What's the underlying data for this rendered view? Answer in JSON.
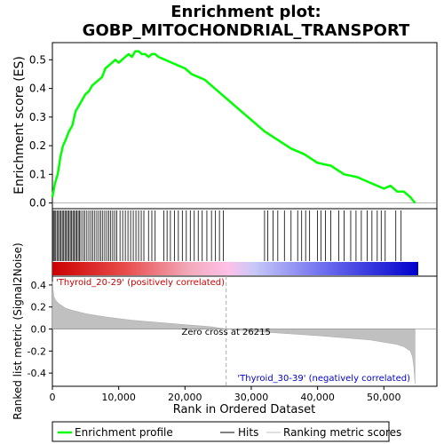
{
  "chart_data": {
    "type": "line",
    "title_line1": "Enrichment plot:",
    "title_line2": "GOBP_MITOCHONDRIAL_TRANSPORT",
    "ylabel_es": "Enrichment score (ES)",
    "ylabel_metric": "Ranked list metric (Signal2Noise)",
    "xlabel": "Rank in Ordered Dataset",
    "xlim": [
      0,
      58000
    ],
    "es_ylim": [
      -0.02,
      0.56
    ],
    "metric_ylim": [
      -0.52,
      0.48
    ],
    "x_ticks": [
      0,
      10000,
      20000,
      30000,
      40000,
      50000
    ],
    "x_tick_labels": [
      "0",
      "10,000",
      "20,000",
      "30,000",
      "40,000",
      "50,000"
    ],
    "es_ticks": [
      0.0,
      0.1,
      0.2,
      0.3,
      0.4,
      0.5
    ],
    "es_tick_labels": [
      "0.0",
      "0.1",
      "0.2",
      "0.3",
      "0.4",
      "0.5"
    ],
    "metric_ticks": [
      -0.4,
      -0.2,
      0.0,
      0.2,
      0.4
    ],
    "metric_tick_labels": [
      "-0.4",
      "-0.2",
      "0.0",
      "0.2",
      "0.4"
    ],
    "enrichment_profile": {
      "name": "Enrichment profile",
      "color": "#00ff00",
      "x": [
        0,
        400,
        800,
        1200,
        1600,
        2000,
        2500,
        3000,
        3500,
        4000,
        4500,
        5000,
        5500,
        6000,
        6500,
        7000,
        7500,
        8000,
        8500,
        9000,
        9500,
        10000,
        10500,
        11000,
        11500,
        12000,
        12500,
        13000,
        13500,
        14000,
        14500,
        15000,
        15500,
        16000,
        17000,
        18000,
        19000,
        20000,
        21000,
        22000,
        23000,
        24000,
        25000,
        26000,
        28000,
        30000,
        32000,
        34000,
        36000,
        38000,
        40000,
        42000,
        44000,
        46000,
        48000,
        50000,
        51000,
        52000,
        53000,
        54000,
        54700
      ],
      "y": [
        0.02,
        0.07,
        0.1,
        0.16,
        0.2,
        0.22,
        0.25,
        0.27,
        0.32,
        0.34,
        0.36,
        0.38,
        0.39,
        0.41,
        0.42,
        0.43,
        0.44,
        0.47,
        0.48,
        0.49,
        0.5,
        0.49,
        0.5,
        0.51,
        0.52,
        0.51,
        0.53,
        0.53,
        0.52,
        0.52,
        0.51,
        0.52,
        0.52,
        0.51,
        0.5,
        0.49,
        0.48,
        0.47,
        0.45,
        0.44,
        0.43,
        0.41,
        0.39,
        0.37,
        0.33,
        0.29,
        0.25,
        0.22,
        0.19,
        0.17,
        0.14,
        0.13,
        0.1,
        0.09,
        0.07,
        0.05,
        0.06,
        0.04,
        0.04,
        0.02,
        0.0
      ]
    },
    "hits_label": "Hits",
    "hit_positions": [
      150,
      300,
      500,
      700,
      900,
      1100,
      1300,
      1500,
      1700,
      1900,
      2100,
      2300,
      2500,
      2700,
      2900,
      3100,
      3300,
      3500,
      3700,
      3900,
      4100,
      4300,
      4600,
      4900,
      5200,
      5500,
      5800,
      6100,
      6400,
      6700,
      7000,
      7300,
      7600,
      7900,
      8200,
      8500,
      8800,
      9100,
      9400,
      9700,
      10200,
      10600,
      11000,
      11400,
      11800,
      12200,
      12600,
      13000,
      13400,
      13800,
      14500,
      15000,
      15500,
      16800,
      17300,
      17800,
      18400,
      19000,
      19600,
      20200,
      20800,
      21400,
      22000,
      22600,
      23300,
      24000,
      24600,
      25200,
      25800,
      32000,
      32500,
      33300,
      34000,
      35000,
      36000,
      37000,
      37600,
      38200,
      38800,
      40000,
      40500,
      41200,
      42000,
      43200,
      44000,
      45000,
      45800,
      46600,
      47500,
      48200,
      49000,
      49600,
      50200,
      51800,
      52600
    ],
    "zero_cross_label": "Zero cross at 26215",
    "zero_cross": 26215,
    "pos_label": "'Thyroid_20-29' (positively correlated)",
    "neg_label": "'Thyroid_30-39' (negatively correlated)",
    "pos_label_color": "#cc0000",
    "neg_label_color": "#0000cc",
    "ranking_metric": {
      "name": "Ranking metric scores",
      "color": "#c0c0c0",
      "x": [
        0,
        200,
        500,
        1000,
        2000,
        3000,
        5000,
        8000,
        12000,
        16000,
        20000,
        24000,
        26215,
        30000,
        35000,
        40000,
        44000,
        48000,
        50000,
        52000,
        53000,
        54000,
        54300,
        54500,
        54700
      ],
      "y": [
        0.43,
        0.3,
        0.26,
        0.23,
        0.19,
        0.17,
        0.14,
        0.11,
        0.08,
        0.06,
        0.04,
        0.02,
        0.0,
        -0.02,
        -0.04,
        -0.06,
        -0.08,
        -0.1,
        -0.12,
        -0.14,
        -0.16,
        -0.2,
        -0.25,
        -0.33,
        -0.5
      ]
    },
    "legend": [
      {
        "label": "Enrichment profile",
        "color": "#00ff00"
      },
      {
        "label": "Hits",
        "color": "#000000"
      },
      {
        "label": "Ranking metric scores",
        "color": "#c0c0c0"
      }
    ]
  }
}
